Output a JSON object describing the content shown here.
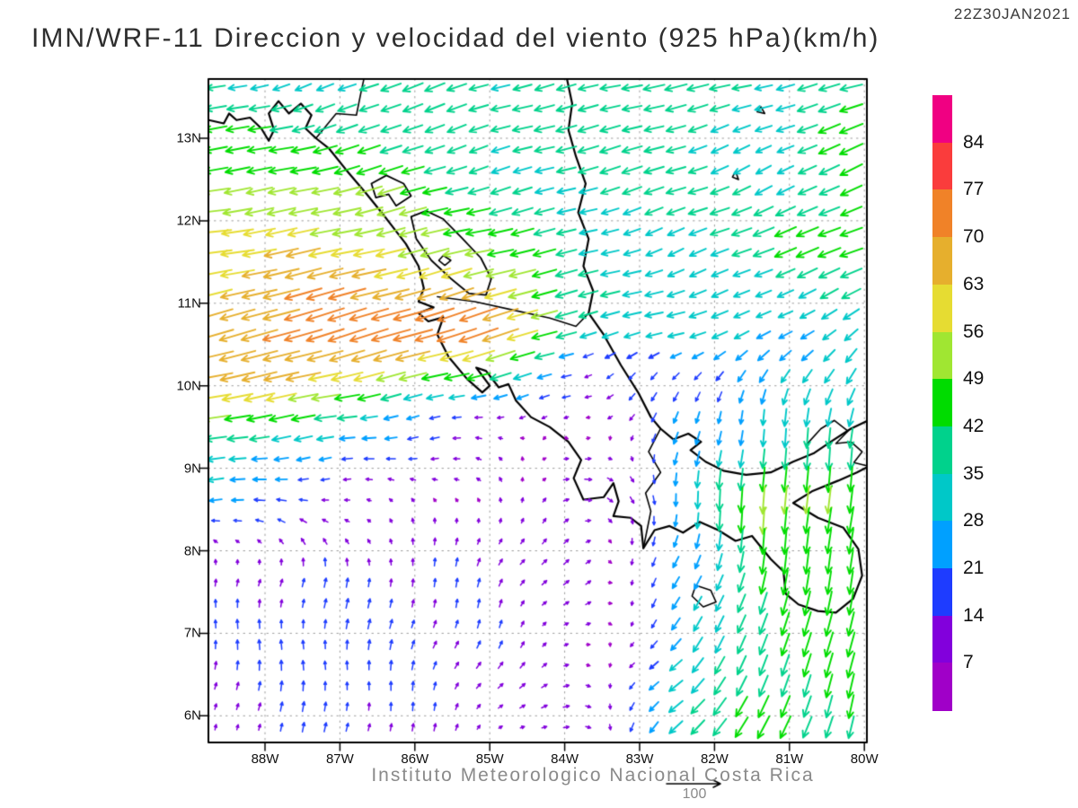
{
  "header": {
    "title": "IMN/WRF-11 Direccion y velocidad del viento (925 hPa)(km/h)",
    "timestamp": "22Z30JAN2021"
  },
  "footer": {
    "credit": "Instituto Meteorologico Nacional Costa Rica"
  },
  "reference_vector": {
    "label": "100",
    "value_kmh": 100
  },
  "axes": {
    "lat_labels": [
      "13N",
      "12N",
      "11N",
      "10N",
      "9N",
      "8N",
      "7N",
      "6N"
    ],
    "lat_values": [
      13,
      12,
      11,
      10,
      9,
      8,
      7,
      6
    ],
    "lon_labels": [
      "88W",
      "87W",
      "86W",
      "85W",
      "84W",
      "83W",
      "82W",
      "81W",
      "80W"
    ],
    "lon_values": [
      -88,
      -87,
      -86,
      -85,
      -84,
      -83,
      -82,
      -81,
      -80
    ],
    "lon_range": [
      -88.75,
      -79.95
    ],
    "lat_range": [
      5.7,
      13.72
    ],
    "grid": "dotted"
  },
  "colorbar": {
    "labels_top_to_bottom": [
      "84",
      "77",
      "70",
      "63",
      "56",
      "49",
      "42",
      "35",
      "28",
      "21",
      "14",
      "7"
    ],
    "levels_kmh": [
      7,
      14,
      21,
      28,
      35,
      42,
      49,
      56,
      63,
      70,
      77,
      84
    ],
    "colors_low_to_high": [
      "#A000C8",
      "#8200DC",
      "#1E3CFF",
      "#00A0FF",
      "#00C8C8",
      "#00D28C",
      "#00DC00",
      "#A0E632",
      "#E6DC32",
      "#E6AF2D",
      "#F08228",
      "#FA3C3C",
      "#F00082"
    ]
  },
  "chart_data": {
    "type": "vector_field",
    "title": "IMN/WRF-11 Direccion y velocidad del viento (925 hPa)(km/h)",
    "units": "km/h",
    "level": "925 hPa",
    "valid_time": "22Z30JAN2021",
    "legend_position": "right",
    "wind_grid": {
      "comment": "u=eastward, v=northward wind (km/h) estimated from arrows; rows ordered south to north",
      "lats": [
        5.7,
        6.7,
        7.7,
        8.7,
        9.2,
        9.7,
        10.2,
        10.7,
        11.7,
        12.7,
        13.7
      ],
      "lons": [
        -88.75,
        -87.5,
        -86.25,
        -85.0,
        -83.75,
        -82.5,
        -81.25,
        -80.0
      ],
      "u": [
        [
          5,
          2,
          2,
          8,
          9,
          -25,
          -20,
          -10
        ],
        [
          0,
          0,
          2,
          6,
          10,
          -22,
          -15,
          -10
        ],
        [
          2,
          2,
          3,
          5,
          8,
          -10,
          -8,
          -8
        ],
        [
          -24,
          -16,
          -8,
          -2,
          14,
          -2,
          -2,
          -5
        ],
        [
          -35,
          -28,
          -16,
          -8,
          8,
          -5,
          -3,
          -6
        ],
        [
          -55,
          -45,
          -25,
          -16,
          -8,
          -8,
          -5,
          -8
        ],
        [
          -62,
          -66,
          -60,
          -45,
          -12,
          -15,
          -15,
          -18
        ],
        [
          -65,
          -72,
          -72,
          -75,
          -35,
          -30,
          -25,
          -28
        ],
        [
          -58,
          -60,
          -55,
          -45,
          -33,
          -30,
          -38,
          -42
        ],
        [
          -46,
          -45,
          -40,
          -34,
          -35,
          -35,
          -28,
          -42
        ],
        [
          -33,
          -30,
          -36,
          -32,
          -38,
          -40,
          -30,
          -45
        ]
      ],
      "v": [
        [
          8,
          15,
          14,
          6,
          -3,
          -25,
          -40,
          -40
        ],
        [
          16,
          18,
          16,
          12,
          2,
          -20,
          -40,
          -45
        ],
        [
          10,
          15,
          15,
          14,
          6,
          -20,
          -42,
          -45
        ],
        [
          -2,
          0,
          2,
          8,
          2,
          -25,
          -55,
          -45
        ],
        [
          -5,
          -4,
          -2,
          2,
          3,
          -20,
          -35,
          -40
        ],
        [
          -10,
          -8,
          -5,
          -3,
          -3,
          -18,
          -28,
          -35
        ],
        [
          -12,
          -16,
          -14,
          -12,
          -6,
          -12,
          -20,
          -28
        ],
        [
          -18,
          -22,
          -22,
          -25,
          -8,
          -8,
          -12,
          -18
        ],
        [
          -8,
          -12,
          -12,
          -10,
          -8,
          -12,
          -15,
          -16
        ],
        [
          -6,
          -10,
          -14,
          -10,
          -10,
          -12,
          -14,
          -20
        ],
        [
          -6,
          -10,
          -14,
          -10,
          -8,
          -8,
          -8,
          -10
        ]
      ]
    },
    "geography": {
      "coastlines": [
        [
          [
            -88.75,
            13.22
          ],
          [
            -88.55,
            13.18
          ],
          [
            -88.48,
            13.3
          ],
          [
            -88.38,
            13.22
          ],
          [
            -88.2,
            13.25
          ],
          [
            -88.05,
            13.12
          ],
          [
            -87.95,
            12.97
          ],
          [
            -87.88,
            13.1
          ],
          [
            -87.95,
            13.3
          ],
          [
            -87.82,
            13.45
          ],
          [
            -87.68,
            13.3
          ],
          [
            -87.52,
            13.42
          ],
          [
            -87.38,
            13.28
          ],
          [
            -87.46,
            13.12
          ],
          [
            -87.32,
            13.0
          ],
          [
            -87.15,
            12.88
          ],
          [
            -86.92,
            12.62
          ],
          [
            -86.65,
            12.33
          ],
          [
            -86.4,
            12.05
          ],
          [
            -86.12,
            11.72
          ],
          [
            -85.95,
            11.45
          ],
          [
            -85.88,
            11.18
          ],
          [
            -85.95,
            11.02
          ],
          [
            -85.75,
            10.95
          ],
          [
            -85.95,
            10.88
          ],
          [
            -85.82,
            10.78
          ],
          [
            -85.62,
            10.83
          ],
          [
            -85.7,
            10.62
          ],
          [
            -85.55,
            10.35
          ],
          [
            -85.3,
            10.08
          ],
          [
            -85.1,
            9.92
          ],
          [
            -85.0,
            10.0
          ],
          [
            -85.18,
            10.22
          ],
          [
            -85.05,
            10.18
          ],
          [
            -84.88,
            9.98
          ],
          [
            -84.75,
            10.02
          ],
          [
            -84.65,
            9.82
          ],
          [
            -84.45,
            9.62
          ],
          [
            -84.2,
            9.5
          ],
          [
            -83.95,
            9.32
          ],
          [
            -83.78,
            9.1
          ],
          [
            -83.88,
            8.88
          ],
          [
            -83.75,
            8.62
          ],
          [
            -83.48,
            8.65
          ],
          [
            -83.35,
            8.82
          ],
          [
            -83.28,
            8.6
          ],
          [
            -83.35,
            8.42
          ],
          [
            -83.12,
            8.4
          ],
          [
            -82.98,
            8.3
          ],
          [
            -82.95,
            8.03
          ],
          [
            -82.8,
            8.25
          ],
          [
            -82.6,
            8.3
          ],
          [
            -82.42,
            8.22
          ],
          [
            -82.2,
            8.35
          ],
          [
            -81.95,
            8.25
          ],
          [
            -81.72,
            8.12
          ],
          [
            -81.5,
            8.18
          ],
          [
            -81.25,
            7.9
          ],
          [
            -81.08,
            7.75
          ],
          [
            -81.05,
            7.48
          ],
          [
            -80.88,
            7.35
          ],
          [
            -80.62,
            7.27
          ],
          [
            -80.38,
            7.25
          ],
          [
            -80.15,
            7.42
          ],
          [
            -80.03,
            7.7
          ],
          [
            -80.08,
            8.02
          ],
          [
            -80.28,
            8.28
          ],
          [
            -80.62,
            8.4
          ],
          [
            -80.95,
            8.58
          ],
          [
            -80.7,
            8.72
          ],
          [
            -80.35,
            8.85
          ],
          [
            -80.1,
            8.95
          ],
          [
            -79.95,
            9.02
          ]
        ],
        [
          [
            -79.95,
            9.58
          ],
          [
            -80.18,
            9.48
          ],
          [
            -80.45,
            9.32
          ],
          [
            -80.68,
            9.18
          ],
          [
            -80.95,
            9.08
          ],
          [
            -81.25,
            8.95
          ],
          [
            -81.58,
            8.92
          ],
          [
            -81.88,
            8.97
          ],
          [
            -82.12,
            9.08
          ],
          [
            -82.32,
            9.22
          ],
          [
            -82.18,
            9.32
          ],
          [
            -82.35,
            9.42
          ],
          [
            -82.55,
            9.35
          ],
          [
            -82.72,
            9.48
          ],
          [
            -82.85,
            9.62
          ],
          [
            -83.02,
            9.92
          ],
          [
            -83.25,
            10.25
          ],
          [
            -83.48,
            10.62
          ],
          [
            -83.68,
            10.88
          ],
          [
            -83.62,
            11.15
          ],
          [
            -83.75,
            11.45
          ],
          [
            -83.68,
            11.78
          ],
          [
            -83.82,
            12.1
          ],
          [
            -83.72,
            12.45
          ],
          [
            -83.85,
            12.78
          ],
          [
            -83.95,
            13.1
          ],
          [
            -83.9,
            13.42
          ],
          [
            -83.97,
            13.72
          ]
        ]
      ],
      "borders": [
        [
          [
            -87.32,
            13.0
          ],
          [
            -87.05,
            13.3
          ],
          [
            -86.78,
            13.28
          ],
          [
            -86.72,
            13.55
          ],
          [
            -86.68,
            13.72
          ]
        ],
        [
          [
            -85.7,
            11.08
          ],
          [
            -85.2,
            11.02
          ],
          [
            -84.7,
            10.92
          ],
          [
            -84.2,
            10.82
          ],
          [
            -83.85,
            10.72
          ],
          [
            -83.68,
            10.88
          ]
        ],
        [
          [
            -82.72,
            9.48
          ],
          [
            -82.88,
            9.2
          ],
          [
            -82.72,
            8.95
          ],
          [
            -82.92,
            8.7
          ],
          [
            -82.85,
            8.48
          ],
          [
            -82.95,
            8.03
          ]
        ]
      ],
      "lakes": [
        [
          [
            -86.58,
            12.45
          ],
          [
            -86.38,
            12.55
          ],
          [
            -86.15,
            12.45
          ],
          [
            -86.05,
            12.3
          ],
          [
            -86.25,
            12.18
          ],
          [
            -86.35,
            12.32
          ],
          [
            -86.52,
            12.28
          ],
          [
            -86.58,
            12.45
          ]
        ],
        [
          [
            -86.05,
            12.05
          ],
          [
            -85.85,
            12.12
          ],
          [
            -85.62,
            12.02
          ],
          [
            -85.38,
            11.8
          ],
          [
            -85.12,
            11.55
          ],
          [
            -84.98,
            11.3
          ],
          [
            -85.05,
            11.1
          ],
          [
            -85.28,
            11.12
          ],
          [
            -85.52,
            11.3
          ],
          [
            -85.78,
            11.52
          ],
          [
            -85.98,
            11.78
          ],
          [
            -86.05,
            12.05
          ]
        ]
      ],
      "islands": [
        [
          [
            -85.62,
            11.58
          ],
          [
            -85.52,
            11.52
          ],
          [
            -85.6,
            11.46
          ],
          [
            -85.68,
            11.52
          ],
          [
            -85.62,
            11.58
          ]
        ],
        [
          [
            -81.72,
            12.6
          ],
          [
            -81.68,
            12.5
          ],
          [
            -81.76,
            12.53
          ],
          [
            -81.72,
            12.6
          ]
        ],
        [
          [
            -81.38,
            13.38
          ],
          [
            -81.33,
            13.3
          ],
          [
            -81.43,
            13.32
          ],
          [
            -81.38,
            13.38
          ]
        ],
        [
          [
            -82.25,
            7.58
          ],
          [
            -82.05,
            7.52
          ],
          [
            -81.98,
            7.38
          ],
          [
            -82.15,
            7.32
          ],
          [
            -82.3,
            7.45
          ],
          [
            -82.25,
            7.58
          ]
        ],
        [
          [
            -80.78,
            9.28
          ],
          [
            -80.58,
            9.48
          ],
          [
            -80.4,
            9.58
          ],
          [
            -80.22,
            9.45
          ],
          [
            -80.38,
            9.3
          ],
          [
            -80.18,
            9.32
          ],
          [
            -80.03,
            9.2
          ],
          [
            -80.14,
            9.07
          ],
          [
            -79.97,
            9.03
          ]
        ]
      ]
    }
  }
}
